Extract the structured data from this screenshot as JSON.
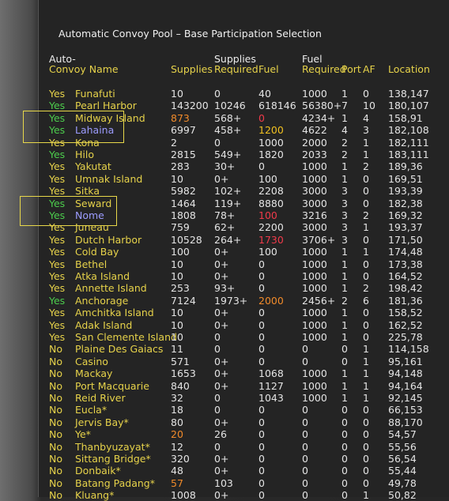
{
  "header": {
    "title": "Automatic Convoy Pool – Base Participation Selection",
    "columns": [
      {
        "lines": [
          "Auto-",
          "Convoy Name"
        ]
      },
      {
        "lines": [
          "Supplies"
        ]
      },
      {
        "lines": [
          "Supplies",
          "Required"
        ]
      },
      {
        "lines": [
          "Fuel"
        ]
      },
      {
        "lines": [
          "Fuel",
          "Required"
        ]
      },
      {
        "lines": [
          "Port"
        ]
      },
      {
        "lines": [
          "AF"
        ]
      },
      {
        "lines": [
          "Location"
        ]
      }
    ]
  },
  "colors": {
    "header_top": "#ececec",
    "header_bottom": "#e6d24a",
    "auto": "#e6d24a",
    "name": "#e6d24a",
    "value": "#e4e4e4"
  },
  "table": {
    "rows": [
      {
        "cells": [
          "Yes",
          "Funafuti",
          "10",
          "0",
          "40",
          "1000",
          "1",
          "0",
          "138,147"
        ]
      },
      {
        "cells": [
          "Yes",
          "Pearl Harbor",
          "143200",
          "10246",
          "618146",
          "56380+",
          "7",
          "10",
          "180,107"
        ],
        "cell_colors": {
          "0": "#4ccc4c"
        }
      },
      {
        "cells": [
          "Yes",
          "Midway Island",
          "873",
          "568+",
          "0",
          "4234+",
          "1",
          "4",
          "158,91"
        ],
        "cell_colors": {
          "0": "#4ccc4c",
          "2": "#f08a2a",
          "4": "#f03a4a"
        }
      },
      {
        "cells": [
          "Yes",
          "Lahaina",
          "6997",
          "458+",
          "1200",
          "4622",
          "4",
          "3",
          "182,108"
        ],
        "cell_colors": {
          "0": "#4ccc4c",
          "1": "#9c9cff",
          "4": "#f0c020"
        }
      },
      {
        "cells": [
          "Yes",
          "Kona",
          "2",
          "0",
          "1000",
          "2000",
          "2",
          "1",
          "182,111"
        ]
      },
      {
        "cells": [
          "Yes",
          "Hilo",
          "2815",
          "549+",
          "1820",
          "2033",
          "2",
          "1",
          "183,111"
        ],
        "cell_colors": {
          "0": "#4ccc4c"
        }
      },
      {
        "cells": [
          "Yes",
          "Yakutat",
          "283",
          "30+",
          "0",
          "1000",
          "1",
          "2",
          "189,36"
        ]
      },
      {
        "cells": [
          "Yes",
          "Umnak Island",
          "10",
          "0+",
          "100",
          "1000",
          "1",
          "0",
          "169,51"
        ]
      },
      {
        "cells": [
          "Yes",
          "Sitka",
          "5982",
          "102+",
          "2208",
          "3000",
          "3",
          "0",
          "193,39"
        ]
      },
      {
        "cells": [
          "Yes",
          "Seward",
          "1464",
          "119+",
          "8880",
          "3000",
          "3",
          "0",
          "182,38"
        ],
        "cell_colors": {
          "0": "#4ccc4c"
        }
      },
      {
        "cells": [
          "Yes",
          "Nome",
          "1808",
          "78+",
          "100",
          "3216",
          "3",
          "2",
          "169,32"
        ],
        "cell_colors": {
          "0": "#4ccc4c",
          "1": "#9c9cff",
          "4": "#f03a4a"
        }
      },
      {
        "cells": [
          "Yes",
          "Juneau",
          "759",
          "62+",
          "2200",
          "3000",
          "3",
          "1",
          "193,37"
        ]
      },
      {
        "cells": [
          "Yes",
          "Dutch Harbor",
          "10528",
          "264+",
          "1730",
          "3706+",
          "3",
          "0",
          "171,50"
        ],
        "cell_colors": {
          "4": "#f03a4a"
        }
      },
      {
        "cells": [
          "Yes",
          "Cold Bay",
          "100",
          "0+",
          "100",
          "1000",
          "1",
          "1",
          "174,48"
        ]
      },
      {
        "cells": [
          "Yes",
          "Bethel",
          "10",
          "0+",
          "0",
          "1000",
          "1",
          "0",
          "173,38"
        ]
      },
      {
        "cells": [
          "Yes",
          "Atka Island",
          "10",
          "0+",
          "0",
          "1000",
          "1",
          "0",
          "164,52"
        ]
      },
      {
        "cells": [
          "Yes",
          "Annette Island",
          "253",
          "93+",
          "0",
          "1000",
          "1",
          "2",
          "198,42"
        ]
      },
      {
        "cells": [
          "Yes",
          "Anchorage",
          "7124",
          "1973+",
          "2000",
          "2456+",
          "2",
          "6",
          "181,36"
        ],
        "cell_colors": {
          "0": "#4ccc4c",
          "4": "#f08a2a"
        }
      },
      {
        "cells": [
          "Yes",
          "Amchitka Island",
          "10",
          "0+",
          "0",
          "1000",
          "1",
          "0",
          "158,52"
        ]
      },
      {
        "cells": [
          "Yes",
          "Adak Island",
          "10",
          "0+",
          "0",
          "1000",
          "1",
          "0",
          "162,52"
        ]
      },
      {
        "cells": [
          "Yes",
          "San Clemente Island",
          "10",
          "0",
          "0",
          "1000",
          "1",
          "0",
          "225,78"
        ]
      },
      {
        "cells": [
          "No",
          "Plaine Des Gaiacs",
          "11",
          "0",
          "0",
          "0",
          "0",
          "1",
          "114,158"
        ]
      },
      {
        "cells": [
          "No",
          "Casino",
          "571",
          "0+",
          "0",
          "0",
          "0",
          "1",
          "95,161"
        ]
      },
      {
        "cells": [
          "No",
          "Mackay",
          "1653",
          "0+",
          "1068",
          "1000",
          "1",
          "1",
          "94,148"
        ]
      },
      {
        "cells": [
          "No",
          "Port Macquarie",
          "840",
          "0+",
          "1127",
          "1000",
          "1",
          "1",
          "94,164"
        ]
      },
      {
        "cells": [
          "No",
          "Reid River",
          "32",
          "0",
          "1043",
          "1000",
          "1",
          "1",
          "92,145"
        ]
      },
      {
        "cells": [
          "No",
          "Eucla*",
          "18",
          "0",
          "0",
          "0",
          "0",
          "0",
          "66,153"
        ]
      },
      {
        "cells": [
          "No",
          "Jervis Bay*",
          "80",
          "0+",
          "0",
          "0",
          "0",
          "0",
          "88,170"
        ]
      },
      {
        "cells": [
          "No",
          "Ye*",
          "20",
          "26",
          "0",
          "0",
          "0",
          "0",
          "54,57"
        ],
        "cell_colors": {
          "2": "#f08a2a"
        }
      },
      {
        "cells": [
          "No",
          "Thanbyuzayat*",
          "12",
          "0",
          "0",
          "0",
          "0",
          "0",
          "55,56"
        ]
      },
      {
        "cells": [
          "No",
          "Sittang Bridge*",
          "320",
          "0+",
          "0",
          "0",
          "0",
          "0",
          "56,54"
        ]
      },
      {
        "cells": [
          "No",
          "Donbaik*",
          "48",
          "0+",
          "0",
          "0",
          "0",
          "0",
          "55,44"
        ]
      },
      {
        "cells": [
          "No",
          "Batang Padang*",
          "57",
          "103",
          "0",
          "0",
          "0",
          "0",
          "49,78"
        ],
        "cell_colors": {
          "2": "#f08a2a"
        }
      },
      {
        "cells": [
          "No",
          "Kluang*",
          "1008",
          "0+",
          "0",
          "0",
          "0",
          "1",
          "50,82"
        ]
      }
    ]
  }
}
